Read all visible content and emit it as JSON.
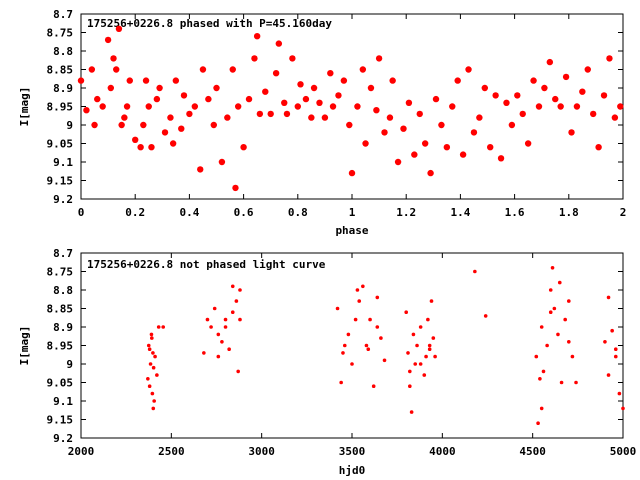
{
  "figure": {
    "background": "#ffffff",
    "marker_color": "#ff0000"
  },
  "chart_data": [
    {
      "type": "scatter",
      "title": "175256+0226.8 phased with P=45.160day",
      "xlabel": "phase",
      "ylabel": "I[mag]",
      "xlim": [
        0,
        2
      ],
      "ylim": [
        8.7,
        9.2
      ],
      "y_inverted": true,
      "xticks": [
        "0",
        "0.2",
        "0.4",
        "0.6",
        "0.8",
        "1",
        "1.2",
        "1.4",
        "1.6",
        "1.8",
        "2"
      ],
      "yticks": [
        "8.7",
        "8.75",
        "8.8",
        "8.85",
        "8.9",
        "8.95",
        "9",
        "9.05",
        "9.1",
        "9.15",
        "9.2"
      ],
      "grid": false,
      "legend": "none",
      "marker": "filled-circle",
      "series": [
        {
          "x": [
            0.0,
            0.02,
            0.04,
            0.05,
            0.06,
            0.08,
            0.1,
            0.11,
            0.12,
            0.13,
            0.14,
            0.15,
            0.16,
            0.17,
            0.18,
            0.2,
            0.22,
            0.23,
            0.24,
            0.25,
            0.26,
            0.28,
            0.29,
            0.31,
            0.33,
            0.34,
            0.35,
            0.37,
            0.38,
            0.4,
            0.42,
            0.44,
            0.45,
            0.47,
            0.49,
            0.5,
            0.52,
            0.54,
            0.56,
            0.57,
            0.58,
            0.6,
            0.62,
            0.64,
            0.65,
            0.66,
            0.68,
            0.7,
            0.72,
            0.73,
            0.75,
            0.76,
            0.78,
            0.8,
            0.81,
            0.83,
            0.85,
            0.86,
            0.88,
            0.9,
            0.92,
            0.93,
            0.95,
            0.97,
            0.99,
            1.0,
            1.02,
            1.04,
            1.05,
            1.07,
            1.09,
            1.1,
            1.12,
            1.14,
            1.15,
            1.17,
            1.19,
            1.21,
            1.23,
            1.25,
            1.27,
            1.29,
            1.31,
            1.33,
            1.35,
            1.37,
            1.39,
            1.41,
            1.43,
            1.45,
            1.47,
            1.49,
            1.51,
            1.53,
            1.55,
            1.57,
            1.59,
            1.61,
            1.63,
            1.65,
            1.67,
            1.69,
            1.71,
            1.73,
            1.75,
            1.77,
            1.79,
            1.81,
            1.83,
            1.85,
            1.87,
            1.89,
            1.91,
            1.93,
            1.95,
            1.97,
            1.99
          ],
          "y": [
            8.88,
            8.96,
            8.85,
            9.0,
            8.93,
            8.95,
            8.77,
            8.9,
            8.82,
            8.85,
            8.74,
            9.0,
            8.98,
            8.95,
            8.88,
            9.04,
            9.06,
            9.0,
            8.88,
            8.95,
            9.06,
            8.93,
            8.9,
            9.02,
            8.98,
            9.05,
            8.88,
            9.01,
            8.92,
            8.97,
            8.95,
            9.12,
            8.85,
            8.93,
            9.0,
            8.9,
            9.1,
            8.98,
            8.85,
            9.17,
            8.95,
            9.06,
            8.93,
            8.82,
            8.76,
            8.97,
            8.91,
            8.97,
            8.86,
            8.78,
            8.94,
            8.97,
            8.82,
            8.95,
            8.89,
            8.93,
            8.98,
            8.9,
            8.94,
            8.98,
            8.86,
            8.95,
            8.92,
            8.88,
            9.0,
            9.13,
            8.95,
            8.85,
            9.05,
            8.9,
            8.96,
            8.82,
            9.02,
            8.98,
            8.88,
            9.1,
            9.01,
            8.94,
            9.08,
            8.97,
            9.05,
            9.13,
            8.93,
            9.0,
            9.06,
            8.95,
            8.88,
            9.08,
            8.85,
            9.02,
            8.98,
            8.9,
            9.06,
            8.92,
            9.09,
            8.94,
            9.0,
            8.92,
            8.97,
            9.05,
            8.88,
            8.95,
            8.9,
            8.83,
            8.93,
            8.95,
            8.87,
            9.02,
            8.95,
            8.91,
            8.85,
            8.97,
            9.06,
            8.92,
            8.82,
            8.98,
            8.95
          ]
        }
      ]
    },
    {
      "type": "scatter",
      "title": "175256+0226.8 not phased light curve",
      "xlabel": "hjd0",
      "ylabel": "I[mag]",
      "xlim": [
        2000,
        5000
      ],
      "ylim": [
        8.7,
        9.2
      ],
      "y_inverted": true,
      "xticks": [
        "2000",
        "2500",
        "3000",
        "3500",
        "4000",
        "4500",
        "5000"
      ],
      "yticks": [
        "8.7",
        "8.75",
        "8.8",
        "8.85",
        "8.9",
        "8.95",
        "9",
        "9.05",
        "9.1",
        "9.15",
        "9.2"
      ],
      "grid": false,
      "legend": "none",
      "marker": "small-dot",
      "series": [
        {
          "x": [
            2370,
            2375,
            2380,
            2385,
            2390,
            2395,
            2398,
            2400,
            2405,
            2410,
            2420,
            2430,
            2380,
            2392,
            2402,
            2455,
            2680,
            2700,
            2720,
            2740,
            2760,
            2780,
            2800,
            2820,
            2840,
            2860,
            2870,
            2880,
            2760,
            2800,
            2840,
            2880,
            3420,
            3440,
            3460,
            3480,
            3500,
            3520,
            3540,
            3560,
            3580,
            3600,
            3620,
            3640,
            3660,
            3680,
            3450,
            3530,
            3590,
            3640,
            3800,
            3810,
            3820,
            3830,
            3840,
            3850,
            3860,
            3880,
            3900,
            3910,
            3920,
            3930,
            3940,
            3950,
            3960,
            3820,
            3880,
            3930,
            4180,
            4240,
            4520,
            4530,
            4540,
            4550,
            4560,
            4580,
            4600,
            4610,
            4620,
            4640,
            4660,
            4680,
            4700,
            4720,
            4740,
            4550,
            4600,
            4650,
            4700,
            4900,
            4920,
            4940,
            4960,
            4980,
            5000,
            4920,
            4960
          ],
          "y": [
            9.04,
            8.95,
            9.06,
            9.0,
            8.92,
            9.08,
            8.97,
            9.12,
            9.1,
            8.98,
            9.03,
            8.9,
            8.96,
            8.93,
            9.01,
            8.9,
            8.97,
            8.88,
            8.9,
            8.85,
            8.98,
            8.94,
            8.88,
            8.96,
            8.79,
            8.83,
            9.02,
            8.8,
            8.92,
            8.9,
            8.86,
            8.88,
            8.85,
            9.05,
            8.95,
            8.92,
            9.0,
            8.88,
            8.83,
            8.79,
            8.95,
            8.88,
            9.06,
            8.9,
            8.93,
            8.99,
            8.97,
            8.8,
            8.96,
            8.82,
            8.86,
            8.97,
            9.02,
            9.13,
            8.92,
            9.0,
            8.95,
            8.9,
            9.03,
            8.98,
            8.88,
            8.96,
            8.83,
            8.93,
            8.98,
            9.06,
            9.0,
            8.95,
            8.75,
            8.87,
            8.98,
            9.16,
            9.04,
            8.9,
            9.02,
            8.95,
            8.8,
            8.74,
            8.85,
            8.92,
            9.05,
            8.88,
            8.83,
            8.98,
            9.05,
            9.12,
            8.86,
            8.78,
            8.94,
            8.94,
            9.03,
            8.91,
            8.98,
            9.08,
            9.12,
            8.82,
            8.96
          ]
        }
      ]
    }
  ]
}
